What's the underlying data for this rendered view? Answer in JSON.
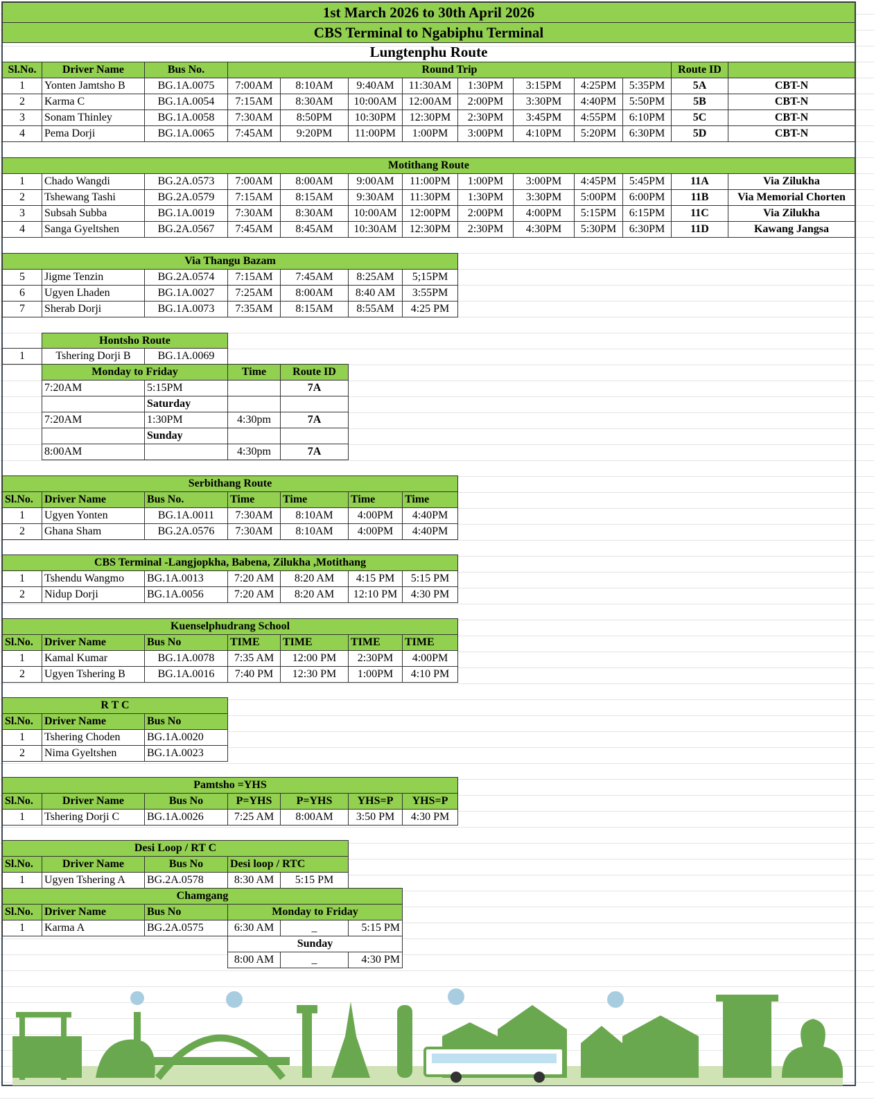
{
  "header": {
    "period": "1st March 2026 to 30th  April  2026",
    "route": "CBS Terminal to Ngabiphu Terminal"
  },
  "sections": [
    {
      "title": "Lungtenphu Route",
      "columns": [
        "Sl.No.",
        "Driver Name",
        "Bus No.",
        "Round Trip",
        "Route ID"
      ],
      "rows": [
        [
          "1",
          "Yonten Jamtsho B",
          "BG.1A.0075",
          "7:00AM",
          "8:10AM",
          "9:40AM",
          "11:30AM",
          "1:30PM",
          "3:15PM",
          "4:25PM",
          "5:35PM",
          "5A",
          "CBT-N"
        ],
        [
          "2",
          "Karma C",
          "BG.1A.0054",
          "7:15AM",
          "8:30AM",
          "10:00AM",
          "12:00AM",
          "2:00PM",
          "3:30PM",
          "4:40PM",
          "5:50PM",
          "5B",
          "CBT-N"
        ],
        [
          "3",
          "Sonam Thinley",
          "BG.1A.0058",
          "7:30AM",
          "8:50PM",
          "10:30PM",
          "12:30PM",
          "2:30PM",
          "3:45PM",
          "4:55PM",
          "6:10PM",
          "5C",
          "CBT-N"
        ],
        [
          "4",
          "Pema Dorji",
          "BG.1A.0065",
          "7:45AM",
          "9:20PM",
          "11:00PM",
          "1:00PM",
          "3:00PM",
          "4:10PM",
          "5:20PM",
          "6:30PM",
          "5D",
          "CBT-N"
        ]
      ]
    },
    {
      "title": "Motithang Route",
      "rows": [
        [
          "1",
          "Chado Wangdi",
          "BG.2A.0573",
          "7:00AM",
          "8:00AM",
          "9:00AM",
          "11:00PM",
          "1:00PM",
          "3:00PM",
          "4:45PM",
          "5:45PM",
          "11A",
          "Via Zilukha"
        ],
        [
          "2",
          "Tshewang Tashi",
          "BG.2A.0579",
          "7:15AM",
          "8:15AM",
          "9:30AM",
          "11:30PM",
          "1:30PM",
          "3:30PM",
          "5:00PM",
          "6:00PM",
          "11B",
          "Via Memorial Chorten"
        ],
        [
          "3",
          "Subsah Subba",
          "BG.1A.0019",
          "7:30AM",
          "8:30AM",
          "10:00AM",
          "12:00PM",
          "2:00PM",
          "4:00PM",
          "5:15PM",
          "6:15PM",
          "11C",
          "Via Zilukha"
        ],
        [
          "4",
          "Sanga Gyeltshen",
          "BG.2A.0567",
          "7:45AM",
          "8:45AM",
          "10:30AM",
          "12:30PM",
          "2:30PM",
          "4:30PM",
          "5:30PM",
          "6:30PM",
          "11D",
          "Kawang Jangsa"
        ]
      ]
    },
    {
      "title": "Via Thangu Bazam",
      "rows": [
        [
          "5",
          "Jigme Tenzin",
          "BG.2A.0574",
          "7:15AM",
          "7:45AM",
          "8:25AM",
          "5;15PM"
        ],
        [
          "6",
          "Ugyen Lhaden",
          "BG.1A.0027",
          "7:25AM",
          "8:00AM",
          "8:40 AM",
          "3:55PM"
        ],
        [
          "7",
          "Sherab Dorji",
          "BG.1A.0073",
          "7:35AM",
          "8:15AM",
          "8:55AM",
          "4:25 PM"
        ]
      ]
    },
    {
      "title": "Hontsho Route",
      "rows": [
        [
          "1",
          "Tshering Dorji B",
          "BG.1A.0069"
        ],
        [
          "Monday to Friday",
          "Time",
          "Route ID"
        ],
        [
          "7:20AM",
          "5:15PM",
          "7A"
        ],
        [
          "Saturday"
        ],
        [
          "7:20AM",
          "1:30PM",
          "4:30pm",
          "7A"
        ],
        [
          "Sunday"
        ],
        [
          "8:00AM",
          "4:30pm",
          "7A"
        ]
      ]
    },
    {
      "title": "Serbithang Route",
      "columns": [
        "Sl.No.",
        "Driver Name",
        "Bus No.",
        "Time",
        "Time",
        "Time",
        "Time"
      ],
      "rows": [
        [
          "1",
          "Ugyen Yonten",
          "BG.1A.0011",
          "7:30AM",
          "8:10AM",
          "4:00PM",
          "4:40PM"
        ],
        [
          "2",
          "Ghana Sham",
          "BG.2A.0576",
          "7:30AM",
          "8:10AM",
          "4:00PM",
          "4:40PM"
        ]
      ]
    },
    {
      "title": "CBS Terminal -Langjopkha, Babena, Zilukha ,Motithang",
      "rows": [
        [
          "1",
          "Tshendu Wangmo",
          "BG.1A.0013",
          "7:20 AM",
          "8:20 AM",
          "4:15 PM",
          "5:15 PM"
        ],
        [
          "2",
          "Nidup Dorji",
          "BG.1A.0056",
          "7:20 AM",
          "8:20 AM",
          "12:10 PM",
          "4:30 PM"
        ]
      ]
    },
    {
      "title": "Kuenselphudrang School",
      "columns": [
        "Sl.No.",
        "Driver Name",
        "Bus No",
        "TIME",
        "TIME",
        "TIME",
        "TIME"
      ],
      "rows": [
        [
          "1",
          "Kamal Kumar",
          "BG.1A.0078",
          "7:35 AM",
          "12:00 PM",
          "2:30PM",
          "4:00PM"
        ],
        [
          "2",
          "Ugyen Tshering B",
          "BG.1A.0016",
          "7:40 PM",
          "12:30 PM",
          "1:00PM",
          "4:10 PM"
        ]
      ]
    },
    {
      "title": "R T C",
      "columns": [
        "Sl.No.",
        "Driver Name",
        "Bus No"
      ],
      "rows": [
        [
          "1",
          "Tshering Choden",
          "BG.1A.0020"
        ],
        [
          "2",
          "Nima Gyeltshen",
          "BG.1A.0023"
        ]
      ]
    },
    {
      "title": "Pamtsho =YHS",
      "columns": [
        "Sl.No.",
        "Driver Name",
        "Bus No",
        "P=YHS",
        "P=YHS",
        "YHS=P",
        "YHS=P"
      ],
      "rows": [
        [
          "1",
          "Tshering Dorji C",
          "BG.1A.0026",
          "7:25 AM",
          "8:00AM",
          "3:50 PM",
          "4:30 PM"
        ]
      ]
    },
    {
      "title": "Desi Loop / RT C",
      "columns": [
        "Sl.No.",
        "Driver Name",
        "Bus No",
        "Desi loop / RTC"
      ],
      "rows": [
        [
          "1",
          "Ugyen Tshering A",
          "BG.2A.0578",
          "8:30 AM",
          "5:15 PM"
        ]
      ]
    },
    {
      "title": "Chamgang",
      "columns": [
        "Sl.No.",
        "Driver Name",
        "Bus No",
        "Monday to Friday"
      ],
      "rows": [
        [
          "1",
          "Karma A",
          "BG.2A.0575",
          "6:30 AM",
          "_",
          "5:15 PM"
        ],
        [
          "Sunday"
        ],
        [
          "8:00 AM",
          "_",
          "4:30 PM"
        ]
      ]
    }
  ]
}
